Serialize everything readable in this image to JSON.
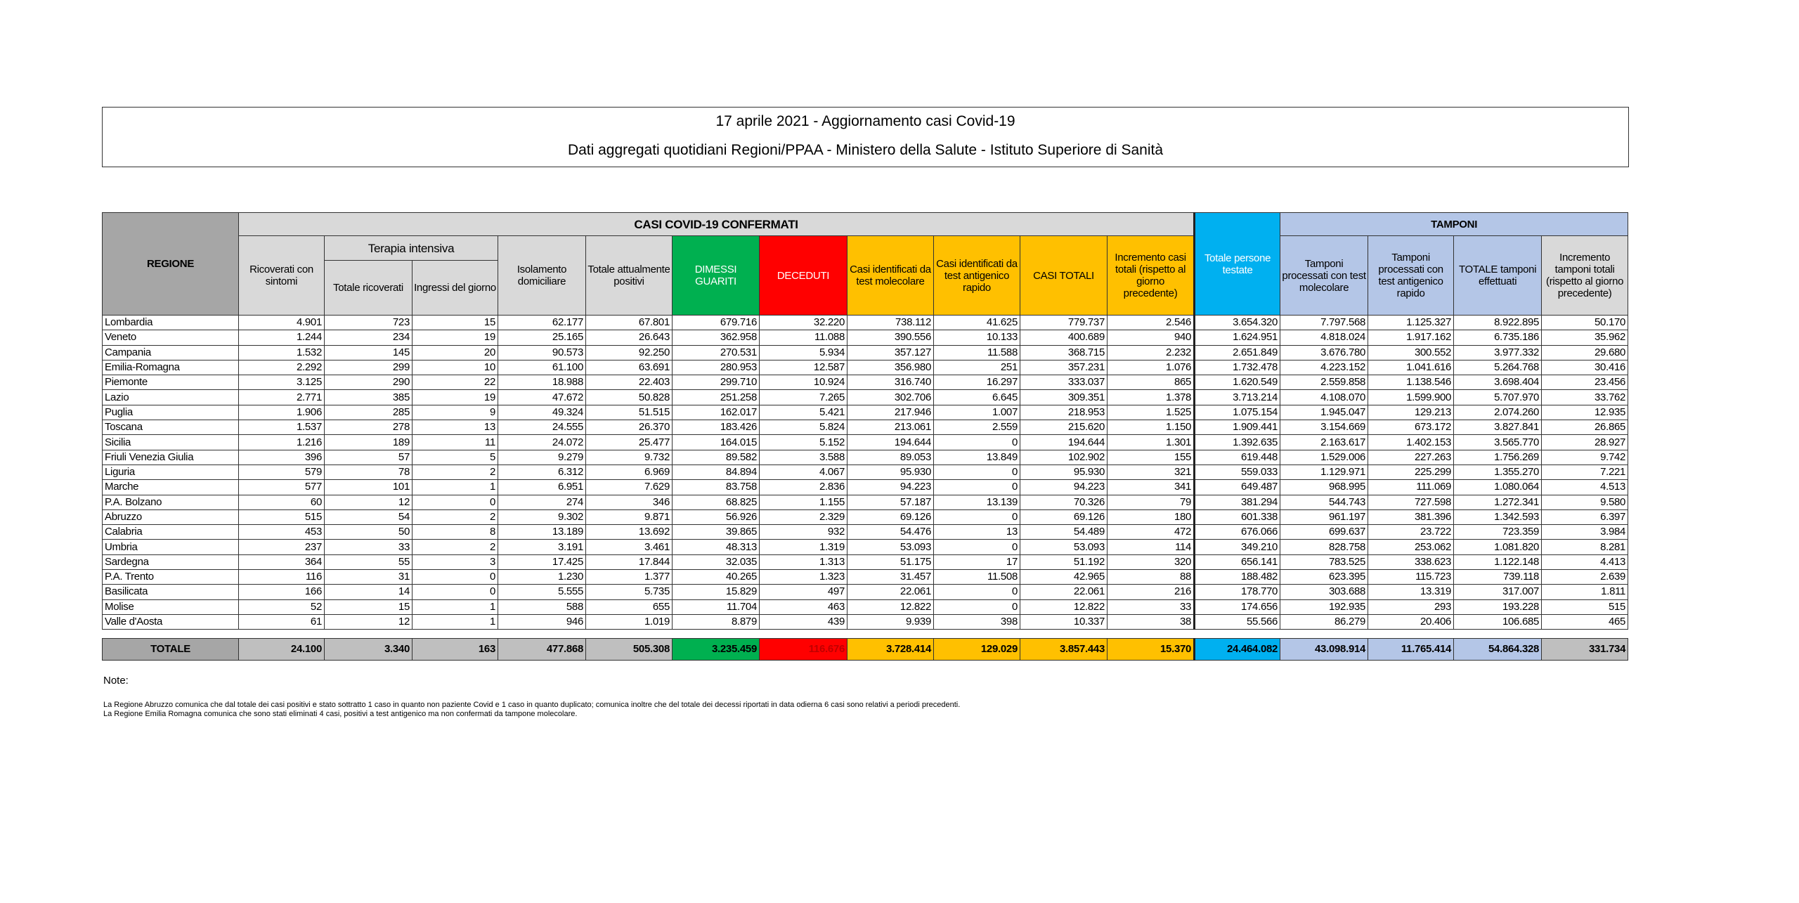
{
  "title": "17 aprile 2021 - Aggiornamento casi Covid-19",
  "subtitle": "Dati aggregati quotidiani Regioni/PPAA - Ministero della Salute - Istituto Superiore di Sanità",
  "headers": {
    "regione": "REGIONE",
    "casi_group": "CASI COVID-19 CONFERMATI",
    "tamponi_group": "TAMPONI",
    "terapia_group": "Terapia intensiva",
    "ricoverati": "Ricoverati con sintomi",
    "ti_totale": "Totale ricoverati",
    "ti_ingressi": "Ingressi del giorno",
    "isolamento": "Isolamento domiciliare",
    "totale_positivi": "Totale attualmente positivi",
    "dimessi": "DIMESSI GUARITI",
    "deceduti": "DECEDUTI",
    "casi_mol": "Casi identificati da test molecolare",
    "casi_ant": "Casi identificati da test antigenico rapido",
    "casi_totali": "CASI TOTALI",
    "incremento_casi": "Incremento casi totali (rispetto al giorno precedente)",
    "persone_testate": "Totale persone testate",
    "tamp_mol": "Tamponi processati con test molecolare",
    "tamp_ant": "Tamponi processati con test antigenico rapido",
    "tamp_totale": "TOTALE tamponi effettuati",
    "incremento_tamp": "Incremento tamponi totali (rispetto al giorno precedente)"
  },
  "colors": {
    "dimessi": "#00b050",
    "deceduti": "#ff0000",
    "casi": "#ffc000",
    "persone": "#00b0f0",
    "tamponi": "#b4c6e7",
    "header": "#d9d9d9",
    "regione": "#a6a6a6"
  },
  "rows": [
    [
      "Lombardia",
      "4.901",
      "723",
      "15",
      "62.177",
      "67.801",
      "679.716",
      "32.220",
      "738.112",
      "41.625",
      "779.737",
      "2.546",
      "3.654.320",
      "7.797.568",
      "1.125.327",
      "8.922.895",
      "50.170"
    ],
    [
      "Veneto",
      "1.244",
      "234",
      "19",
      "25.165",
      "26.643",
      "362.958",
      "11.088",
      "390.556",
      "10.133",
      "400.689",
      "940",
      "1.624.951",
      "4.818.024",
      "1.917.162",
      "6.735.186",
      "35.962"
    ],
    [
      "Campania",
      "1.532",
      "145",
      "20",
      "90.573",
      "92.250",
      "270.531",
      "5.934",
      "357.127",
      "11.588",
      "368.715",
      "2.232",
      "2.651.849",
      "3.676.780",
      "300.552",
      "3.977.332",
      "29.680"
    ],
    [
      "Emilia-Romagna",
      "2.292",
      "299",
      "10",
      "61.100",
      "63.691",
      "280.953",
      "12.587",
      "356.980",
      "251",
      "357.231",
      "1.076",
      "1.732.478",
      "4.223.152",
      "1.041.616",
      "5.264.768",
      "30.416"
    ],
    [
      "Piemonte",
      "3.125",
      "290",
      "22",
      "18.988",
      "22.403",
      "299.710",
      "10.924",
      "316.740",
      "16.297",
      "333.037",
      "865",
      "1.620.549",
      "2.559.858",
      "1.138.546",
      "3.698.404",
      "23.456"
    ],
    [
      "Lazio",
      "2.771",
      "385",
      "19",
      "47.672",
      "50.828",
      "251.258",
      "7.265",
      "302.706",
      "6.645",
      "309.351",
      "1.378",
      "3.713.214",
      "4.108.070",
      "1.599.900",
      "5.707.970",
      "33.762"
    ],
    [
      "Puglia",
      "1.906",
      "285",
      "9",
      "49.324",
      "51.515",
      "162.017",
      "5.421",
      "217.946",
      "1.007",
      "218.953",
      "1.525",
      "1.075.154",
      "1.945.047",
      "129.213",
      "2.074.260",
      "12.935"
    ],
    [
      "Toscana",
      "1.537",
      "278",
      "13",
      "24.555",
      "26.370",
      "183.426",
      "5.824",
      "213.061",
      "2.559",
      "215.620",
      "1.150",
      "1.909.441",
      "3.154.669",
      "673.172",
      "3.827.841",
      "26.865"
    ],
    [
      "Sicilia",
      "1.216",
      "189",
      "11",
      "24.072",
      "25.477",
      "164.015",
      "5.152",
      "194.644",
      "0",
      "194.644",
      "1.301",
      "1.392.635",
      "2.163.617",
      "1.402.153",
      "3.565.770",
      "28.927"
    ],
    [
      "Friuli Venezia Giulia",
      "396",
      "57",
      "5",
      "9.279",
      "9.732",
      "89.582",
      "3.588",
      "89.053",
      "13.849",
      "102.902",
      "155",
      "619.448",
      "1.529.006",
      "227.263",
      "1.756.269",
      "9.742"
    ],
    [
      "Liguria",
      "579",
      "78",
      "2",
      "6.312",
      "6.969",
      "84.894",
      "4.067",
      "95.930",
      "0",
      "95.930",
      "321",
      "559.033",
      "1.129.971",
      "225.299",
      "1.355.270",
      "7.221"
    ],
    [
      "Marche",
      "577",
      "101",
      "1",
      "6.951",
      "7.629",
      "83.758",
      "2.836",
      "94.223",
      "0",
      "94.223",
      "341",
      "649.487",
      "968.995",
      "111.069",
      "1.080.064",
      "4.513"
    ],
    [
      "P.A. Bolzano",
      "60",
      "12",
      "0",
      "274",
      "346",
      "68.825",
      "1.155",
      "57.187",
      "13.139",
      "70.326",
      "79",
      "381.294",
      "544.743",
      "727.598",
      "1.272.341",
      "9.580"
    ],
    [
      "Abruzzo",
      "515",
      "54",
      "2",
      "9.302",
      "9.871",
      "56.926",
      "2.329",
      "69.126",
      "0",
      "69.126",
      "180",
      "601.338",
      "961.197",
      "381.396",
      "1.342.593",
      "6.397"
    ],
    [
      "Calabria",
      "453",
      "50",
      "8",
      "13.189",
      "13.692",
      "39.865",
      "932",
      "54.476",
      "13",
      "54.489",
      "472",
      "676.066",
      "699.637",
      "23.722",
      "723.359",
      "3.984"
    ],
    [
      "Umbria",
      "237",
      "33",
      "2",
      "3.191",
      "3.461",
      "48.313",
      "1.319",
      "53.093",
      "0",
      "53.093",
      "114",
      "349.210",
      "828.758",
      "253.062",
      "1.081.820",
      "8.281"
    ],
    [
      "Sardegna",
      "364",
      "55",
      "3",
      "17.425",
      "17.844",
      "32.035",
      "1.313",
      "51.175",
      "17",
      "51.192",
      "320",
      "656.141",
      "783.525",
      "338.623",
      "1.122.148",
      "4.413"
    ],
    [
      "P.A. Trento",
      "116",
      "31",
      "0",
      "1.230",
      "1.377",
      "40.265",
      "1.323",
      "31.457",
      "11.508",
      "42.965",
      "88",
      "188.482",
      "623.395",
      "115.723",
      "739.118",
      "2.639"
    ],
    [
      "Basilicata",
      "166",
      "14",
      "0",
      "5.555",
      "5.735",
      "15.829",
      "497",
      "22.061",
      "0",
      "22.061",
      "216",
      "178.770",
      "303.688",
      "13.319",
      "317.007",
      "1.811"
    ],
    [
      "Molise",
      "52",
      "15",
      "1",
      "588",
      "655",
      "11.704",
      "463",
      "12.822",
      "0",
      "12.822",
      "33",
      "174.656",
      "192.935",
      "293",
      "193.228",
      "515"
    ],
    [
      "Valle d'Aosta",
      "61",
      "12",
      "1",
      "946",
      "1.019",
      "8.879",
      "439",
      "9.939",
      "398",
      "10.337",
      "38",
      "55.566",
      "86.279",
      "20.406",
      "106.685",
      "465"
    ]
  ],
  "totals": [
    "TOTALE",
    "24.100",
    "3.340",
    "163",
    "477.868",
    "505.308",
    "3.235.459",
    "116.676",
    "3.728.414",
    "129.029",
    "3.857.443",
    "15.370",
    "24.464.082",
    "43.098.914",
    "11.765.414",
    "54.864.328",
    "331.734"
  ],
  "notes": {
    "label": "Note:",
    "items": [
      "La Regione Abruzzo comunica che dal totale dei casi positivi e stato sottratto 1 caso in quanto non paziente Covid e 1 caso in quanto duplicato; comunica inoltre che del totale dei decessi riportati in data odierna 6 casi sono relativi a periodi precedenti.",
      "La Regione Emilia Romagna comunica che sono stati eliminati 4 casi, positivi a test antigenico ma non confermati da tampone molecolare."
    ]
  }
}
